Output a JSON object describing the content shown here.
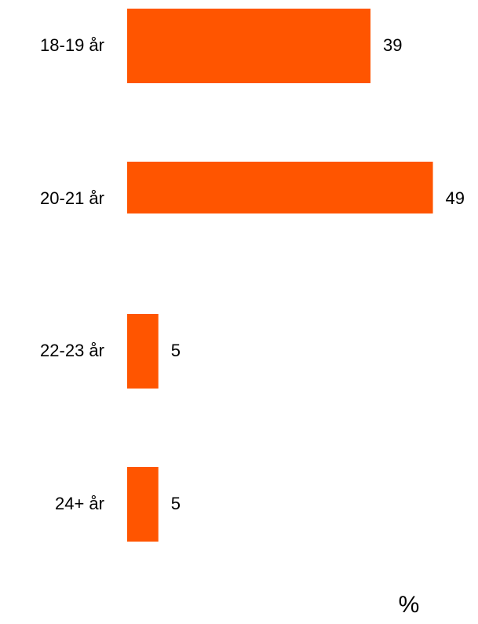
{
  "chart_data": {
    "type": "bar",
    "orientation": "horizontal",
    "categories": [
      "18-19 år",
      "20-21 år",
      "22-23 år",
      "24+ år"
    ],
    "values": [
      39,
      49,
      5,
      5
    ],
    "color": "#ff5500",
    "x_label": "%"
  }
}
